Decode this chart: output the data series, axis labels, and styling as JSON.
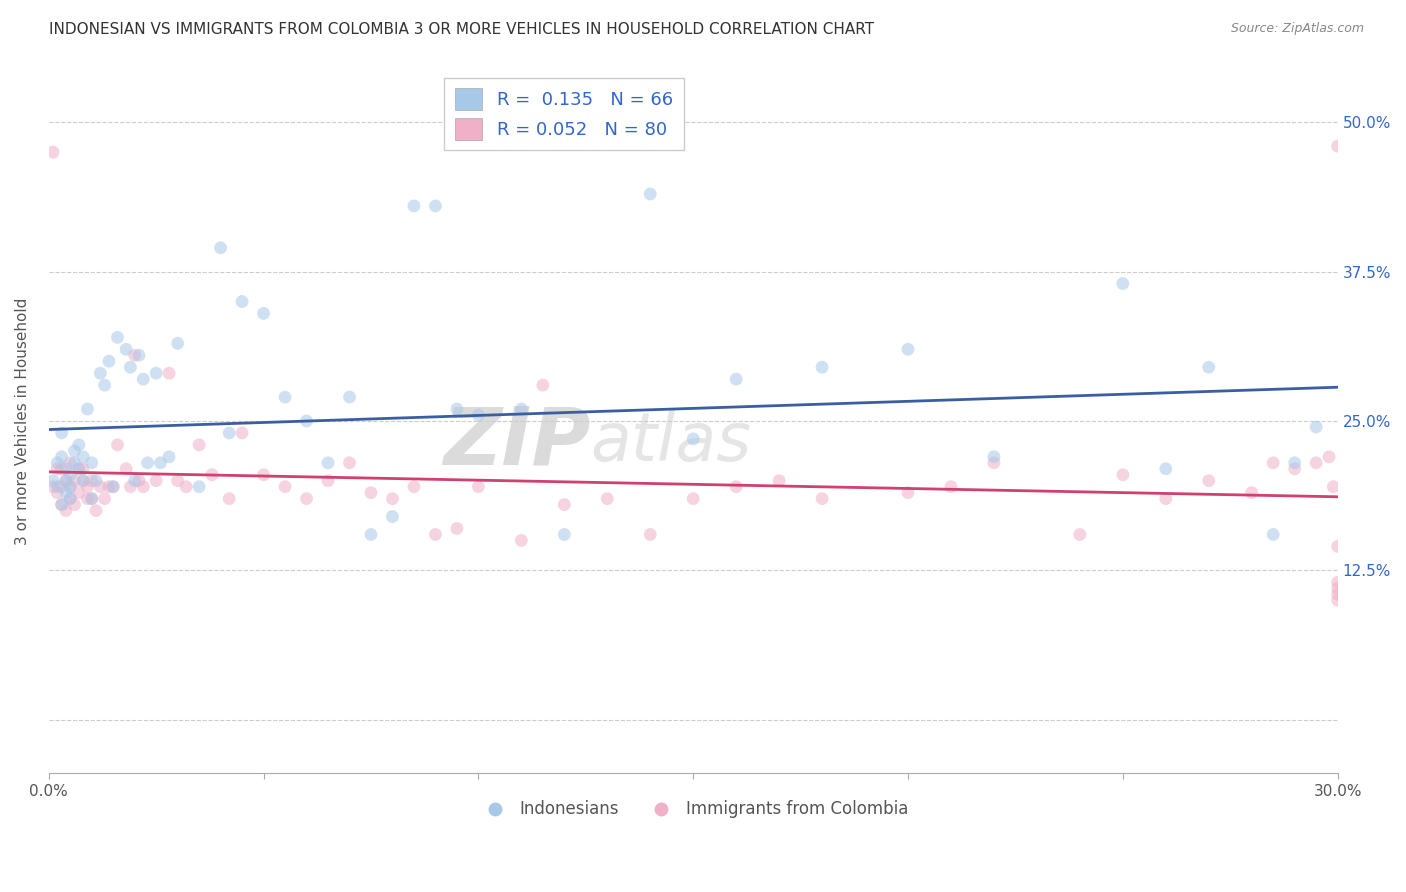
{
  "title": "INDONESIAN VS IMMIGRANTS FROM COLOMBIA 3 OR MORE VEHICLES IN HOUSEHOLD CORRELATION CHART",
  "source": "Source: ZipAtlas.com",
  "ylabel": "3 or more Vehicles in Household",
  "xmin": 0.0,
  "xmax": 0.3,
  "ymin": -0.045,
  "ymax": 0.545,
  "color_blue": "#a8c8e8",
  "color_pink": "#f0b0c8",
  "line_color_blue": "#3a5fa0",
  "line_color_pink": "#d04070",
  "watermark_zip": "ZIP",
  "watermark_atlas": "atlas",
  "R_blue": 0.135,
  "N_blue": 66,
  "R_pink": 0.052,
  "N_pink": 80,
  "legend_R_blue": "R =  0.135",
  "legend_N_blue": "N = 66",
  "legend_R_pink": "R = 0.052",
  "legend_N_pink": "N = 80",
  "legend_label_blue": "Indonesians",
  "legend_label_pink": "Immigrants from Colombia",
  "marker_size": 85,
  "marker_alpha": 0.55,
  "blue_x": [
    0.001,
    0.002,
    0.002,
    0.003,
    0.003,
    0.003,
    0.004,
    0.004,
    0.004,
    0.005,
    0.005,
    0.005,
    0.006,
    0.006,
    0.007,
    0.007,
    0.008,
    0.008,
    0.009,
    0.01,
    0.01,
    0.011,
    0.012,
    0.013,
    0.014,
    0.015,
    0.016,
    0.018,
    0.019,
    0.02,
    0.021,
    0.022,
    0.023,
    0.025,
    0.026,
    0.028,
    0.03,
    0.035,
    0.04,
    0.042,
    0.045,
    0.05,
    0.055,
    0.06,
    0.065,
    0.07,
    0.075,
    0.08,
    0.085,
    0.09,
    0.095,
    0.1,
    0.11,
    0.12,
    0.14,
    0.15,
    0.16,
    0.18,
    0.2,
    0.22,
    0.25,
    0.26,
    0.27,
    0.285,
    0.29,
    0.295
  ],
  "blue_y": [
    0.2,
    0.195,
    0.215,
    0.18,
    0.22,
    0.24,
    0.19,
    0.2,
    0.21,
    0.185,
    0.195,
    0.205,
    0.215,
    0.225,
    0.21,
    0.23,
    0.2,
    0.22,
    0.26,
    0.215,
    0.185,
    0.2,
    0.29,
    0.28,
    0.3,
    0.195,
    0.32,
    0.31,
    0.295,
    0.2,
    0.305,
    0.285,
    0.215,
    0.29,
    0.215,
    0.22,
    0.315,
    0.195,
    0.395,
    0.24,
    0.35,
    0.34,
    0.27,
    0.25,
    0.215,
    0.27,
    0.155,
    0.17,
    0.43,
    0.43,
    0.26,
    0.255,
    0.26,
    0.155,
    0.44,
    0.235,
    0.285,
    0.295,
    0.31,
    0.22,
    0.365,
    0.21,
    0.295,
    0.155,
    0.215,
    0.245
  ],
  "pink_x": [
    0.001,
    0.001,
    0.002,
    0.002,
    0.003,
    0.003,
    0.003,
    0.004,
    0.004,
    0.005,
    0.005,
    0.005,
    0.006,
    0.006,
    0.007,
    0.007,
    0.008,
    0.008,
    0.009,
    0.009,
    0.01,
    0.01,
    0.011,
    0.012,
    0.013,
    0.014,
    0.015,
    0.016,
    0.018,
    0.019,
    0.02,
    0.021,
    0.022,
    0.025,
    0.028,
    0.03,
    0.032,
    0.035,
    0.038,
    0.042,
    0.045,
    0.05,
    0.055,
    0.06,
    0.065,
    0.07,
    0.075,
    0.08,
    0.085,
    0.09,
    0.095,
    0.1,
    0.11,
    0.115,
    0.12,
    0.13,
    0.14,
    0.15,
    0.16,
    0.17,
    0.18,
    0.2,
    0.21,
    0.22,
    0.24,
    0.25,
    0.26,
    0.27,
    0.28,
    0.285,
    0.29,
    0.295,
    0.298,
    0.299,
    0.3,
    0.3,
    0.3,
    0.3,
    0.3,
    0.3
  ],
  "pink_y": [
    0.195,
    0.475,
    0.19,
    0.21,
    0.18,
    0.195,
    0.21,
    0.175,
    0.2,
    0.185,
    0.195,
    0.215,
    0.18,
    0.2,
    0.21,
    0.19,
    0.2,
    0.21,
    0.185,
    0.195,
    0.185,
    0.2,
    0.175,
    0.195,
    0.185,
    0.195,
    0.195,
    0.23,
    0.21,
    0.195,
    0.305,
    0.2,
    0.195,
    0.2,
    0.29,
    0.2,
    0.195,
    0.23,
    0.205,
    0.185,
    0.24,
    0.205,
    0.195,
    0.185,
    0.2,
    0.215,
    0.19,
    0.185,
    0.195,
    0.155,
    0.16,
    0.195,
    0.15,
    0.28,
    0.18,
    0.185,
    0.155,
    0.185,
    0.195,
    0.2,
    0.185,
    0.19,
    0.195,
    0.215,
    0.155,
    0.205,
    0.185,
    0.2,
    0.19,
    0.215,
    0.21,
    0.215,
    0.22,
    0.195,
    0.105,
    0.1,
    0.11,
    0.48,
    0.145,
    0.115
  ]
}
